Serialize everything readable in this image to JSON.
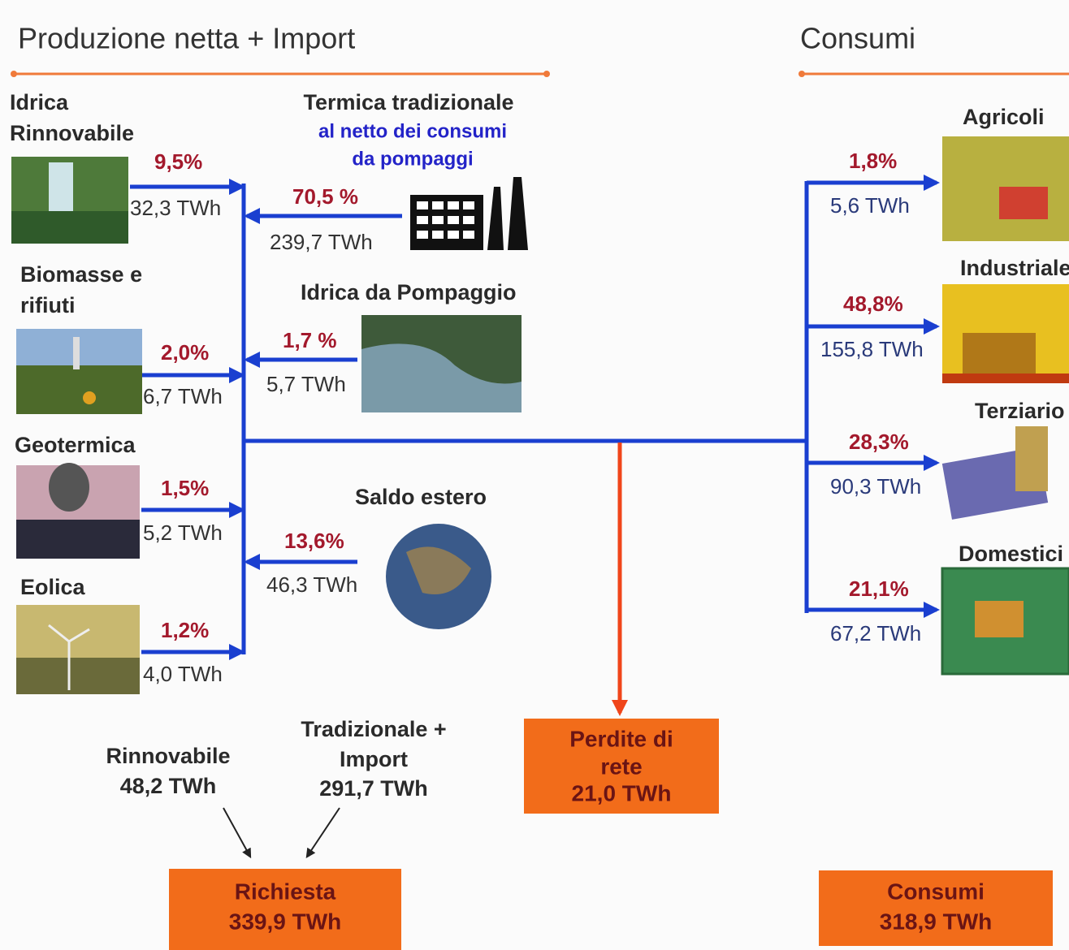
{
  "header": {
    "left_title": "Produzione netta  + Import",
    "right_title": "Consumi"
  },
  "sources": [
    {
      "label": [
        "Idrica",
        "Rinnovabile"
      ],
      "percent": "9,5%",
      "energy": "32,3 TWh"
    },
    {
      "label": [
        "Biomasse e",
        "rifiuti"
      ],
      "percent": "2,0%",
      "energy": "6,7 TWh"
    },
    {
      "label": [
        "Geotermica"
      ],
      "percent": "1,5%",
      "energy": "5,2 TWh"
    },
    {
      "label": [
        "Eolica"
      ],
      "percent": "1,2%",
      "energy": "4,0 TWh"
    }
  ],
  "inputs": [
    {
      "label": [
        "Termica tradizionale",
        "al netto dei consumi",
        "da pompaggi"
      ],
      "percent": "70,5 %",
      "energy": "239,7 TWh"
    },
    {
      "label": [
        "Idrica da Pompaggio"
      ],
      "percent": "1,7 %",
      "energy": "5,7 TWh"
    },
    {
      "label": [
        "Saldo estero"
      ],
      "percent": "13,6%",
      "energy": "46,3 TWh"
    }
  ],
  "consumers": [
    {
      "label": "Agricoli",
      "percent": "1,8%",
      "energy": "5,6 TWh"
    },
    {
      "label": "Industriale",
      "percent": "48,8%",
      "energy": "155,8 TWh"
    },
    {
      "label": "Terziario",
      "percent": "28,3%",
      "energy": "90,3 TWh"
    },
    {
      "label": "Domestici",
      "percent": "21,1%",
      "energy": "67,2 TWh"
    }
  ],
  "summary": {
    "renewable": [
      "Rinnovabile",
      "48,2 TWh"
    ],
    "traditional": [
      "Tradizionale +",
      "Import",
      "291,7 TWh"
    ],
    "losses": [
      "Perdite di",
      "rete",
      "21,0 TWh"
    ],
    "demand": [
      "Richiesta",
      "339,9 TWh"
    ],
    "consumption": [
      "Consumi",
      "318,9 TWh"
    ]
  }
}
